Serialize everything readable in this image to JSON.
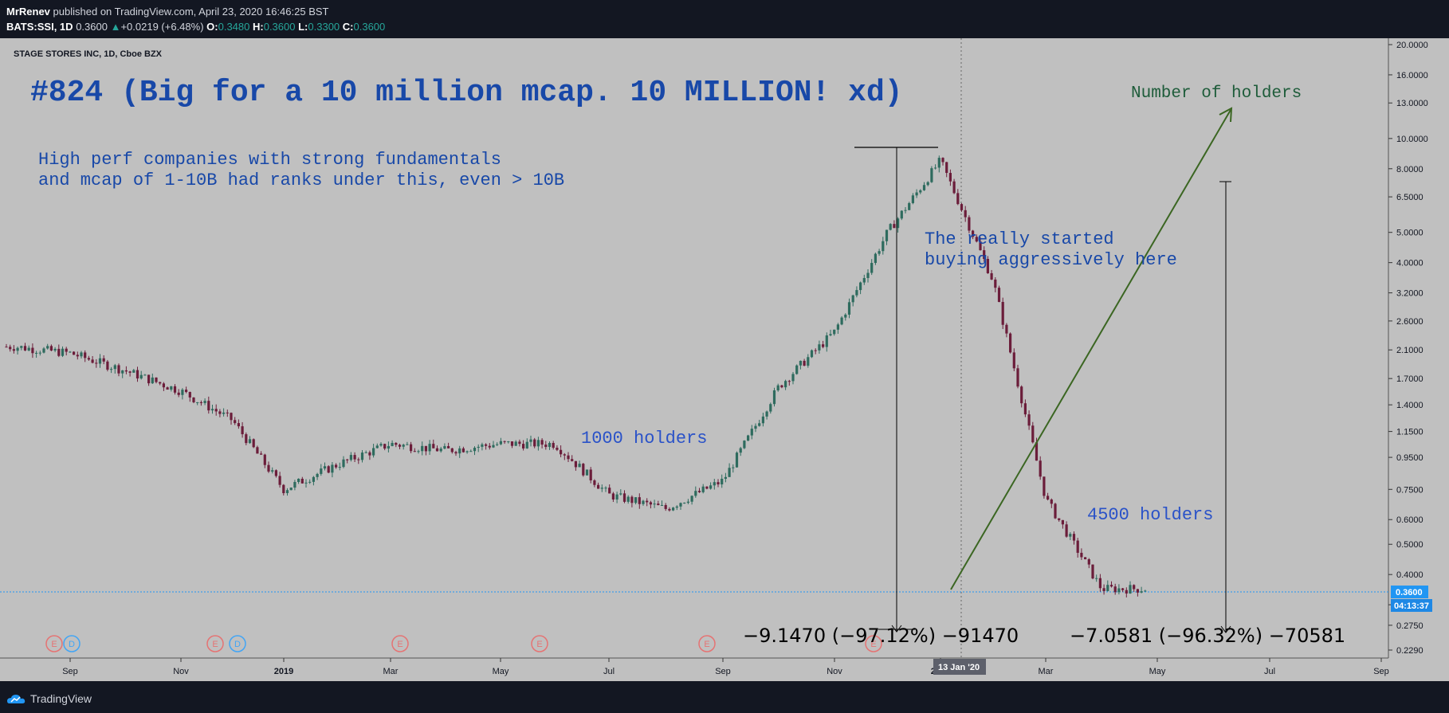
{
  "header": {
    "author": "MrRenev",
    "published_text": "published on TradingView.com, April 23, 2020 16:46:25 BST",
    "symbol": "BATS:SSI, 1D",
    "last": "0.3600",
    "change": "+0.0219 (+6.48%)",
    "o_label": "O:",
    "o": "0.3480",
    "h_label": "H:",
    "h": "0.3600",
    "l_label": "L:",
    "l": "0.3300",
    "c_label": "C:",
    "c": "0.3600"
  },
  "footer": {
    "brand": "TradingView"
  },
  "chart_data": {
    "type": "candlestick",
    "title": "STAGE STORES INC, 1D, Cboe BZX",
    "y_scale": "log",
    "ylim": [
      0.229,
      20.0
    ],
    "y_ticks": [
      "20.0000",
      "16.0000",
      "13.0000",
      "10.0000",
      "8.0000",
      "6.5000",
      "5.0000",
      "4.0000",
      "3.2000",
      "2.6000",
      "2.1000",
      "1.7000",
      "1.4000",
      "1.1500",
      "0.9500",
      "0.7500",
      "0.6000",
      "0.5000",
      "0.4000",
      "0.3200",
      "0.2750",
      "0.2290"
    ],
    "x_ticks": [
      "Sep",
      "Nov",
      "2019",
      "Mar",
      "May",
      "Jul",
      "Sep",
      "Nov",
      "2020",
      "Mar",
      "May",
      "Jul",
      "Sep"
    ],
    "crosshair_x_label": "13 Jan '20",
    "last_price_label": "0.3600",
    "countdown_label": "04:13:37",
    "price_path_approx": [
      {
        "date": "2018-08",
        "close": 2.15
      },
      {
        "date": "2018-09",
        "close": 2.05
      },
      {
        "date": "2018-10",
        "close": 1.8
      },
      {
        "date": "2018-11",
        "close": 1.55
      },
      {
        "date": "2018-12",
        "close": 1.25
      },
      {
        "date": "2019-01",
        "close": 0.75
      },
      {
        "date": "2019-02",
        "close": 0.9
      },
      {
        "date": "2019-03",
        "close": 1.05
      },
      {
        "date": "2019-04",
        "close": 1.0
      },
      {
        "date": "2019-05",
        "close": 1.05
      },
      {
        "date": "2019-06",
        "close": 1.05
      },
      {
        "date": "2019-07",
        "close": 0.72
      },
      {
        "date": "2019-08",
        "close": 0.65
      },
      {
        "date": "2019-09",
        "close": 0.8
      },
      {
        "date": "2019-10",
        "close": 1.6
      },
      {
        "date": "2019-11",
        "close": 2.4
      },
      {
        "date": "2019-12",
        "close": 5.0
      },
      {
        "date": "2020-01",
        "close": 8.5
      },
      {
        "date": "2020-02",
        "close": 3.5
      },
      {
        "date": "2020-03",
        "close": 0.7
      },
      {
        "date": "2020-04",
        "close": 0.36
      }
    ],
    "annotations": {
      "headline": "#824 (Big for a 10 million mcap. 10 MILLION! xd)",
      "note_line1": "High perf companies with strong fundamentals",
      "note_line2": "and mcap of 1-10B had ranks under this, even > 10B",
      "mid_label_line1": "The really started",
      "mid_label_line2": "buying aggressively here",
      "arrow_label": "Number of holders",
      "holders_1000": "1000 holders",
      "holders_4500": "4500 holders",
      "measure1": "−9.1470 (−97.12%) −91470",
      "measure2": "−7.0581 (−96.32%) −70581"
    },
    "event_markers": [
      "E",
      "D",
      "E",
      "D",
      "E",
      "E",
      "E",
      "E"
    ],
    "colors": {
      "background": "#c0c0c0",
      "text_blue": "#1848a8",
      "arrow_green": "#3b6622",
      "label_green": "#1e5c3a"
    }
  }
}
